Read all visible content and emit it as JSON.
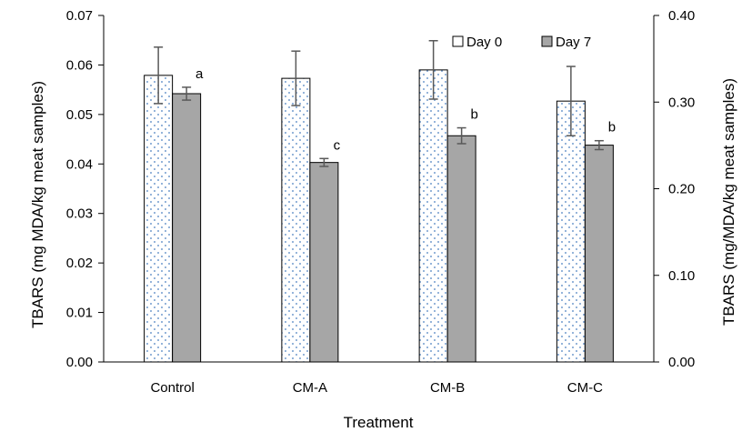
{
  "chart_data": {
    "type": "bar",
    "categories": [
      "Control",
      "CM-A",
      "CM-B",
      "CM-C"
    ],
    "series": [
      {
        "name": "Day 0",
        "values": [
          0.0579,
          0.0573,
          0.059,
          0.0527
        ],
        "error": [
          0.0057,
          0.0055,
          0.0059,
          0.007
        ],
        "color": "#ffffff",
        "pattern": "dots",
        "pattern_color": "#4a7fc0"
      },
      {
        "name": "Day 7",
        "values": [
          0.0542,
          0.0403,
          0.0457,
          0.0438
        ],
        "error": [
          0.0013,
          0.0008,
          0.0016,
          0.0009
        ],
        "color": "#a6a6a6",
        "labels": [
          "a",
          "c",
          "b",
          "b"
        ]
      }
    ],
    "xlabel": "Treatment",
    "ylabel": "TBARS (mg MDA/kg meat samples)",
    "y2label": "TBARS (mg/MDA/kg meat samples)",
    "ylim": [
      0,
      0.07
    ],
    "yticks": [
      "0.00",
      "0.01",
      "0.02",
      "0.03",
      "0.04",
      "0.05",
      "0.06",
      "0.07"
    ],
    "y2lim": [
      0,
      0.4
    ],
    "y2ticks": [
      "0.00",
      "0.10",
      "0.20",
      "0.30",
      "0.40"
    ],
    "legend_position": "top-right",
    "grid": false
  }
}
